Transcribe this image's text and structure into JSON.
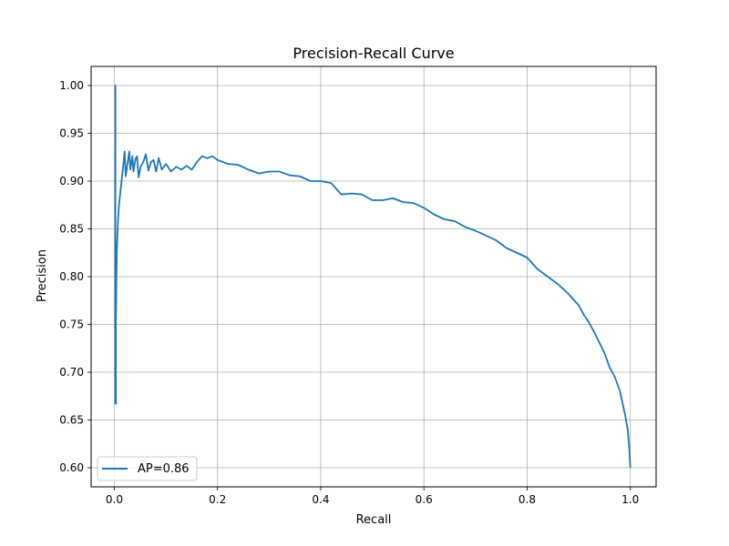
{
  "chart_data": {
    "type": "line",
    "title": "Precision-Recall Curve",
    "xlabel": "Recall",
    "ylabel": "Precision",
    "xlim": [
      -0.045,
      1.05
    ],
    "ylim": [
      0.58,
      1.02
    ],
    "xticks": [
      0.0,
      0.2,
      0.4,
      0.6,
      0.8,
      1.0
    ],
    "xtick_labels": [
      "0.0",
      "0.2",
      "0.4",
      "0.6",
      "0.8",
      "1.0"
    ],
    "yticks": [
      0.6,
      0.65,
      0.7,
      0.75,
      0.8,
      0.85,
      0.9,
      0.95,
      1.0
    ],
    "ytick_labels": [
      "0.60",
      "0.65",
      "0.70",
      "0.75",
      "0.80",
      "0.85",
      "0.90",
      "0.95",
      "1.00"
    ],
    "grid": true,
    "legend_position": "lower-left",
    "series": [
      {
        "name": "AP=0.86",
        "color": "#1f77b4",
        "points": [
          [
            0.001,
            1.0
          ],
          [
            0.002,
            1.0
          ],
          [
            0.002,
            0.667
          ],
          [
            0.003,
            0.667
          ],
          [
            0.003,
            0.75
          ],
          [
            0.004,
            0.8
          ],
          [
            0.005,
            0.83
          ],
          [
            0.007,
            0.857
          ],
          [
            0.009,
            0.875
          ],
          [
            0.012,
            0.89
          ],
          [
            0.014,
            0.9
          ],
          [
            0.016,
            0.91
          ],
          [
            0.018,
            0.92
          ],
          [
            0.02,
            0.931
          ],
          [
            0.022,
            0.905
          ],
          [
            0.026,
            0.92
          ],
          [
            0.029,
            0.931
          ],
          [
            0.031,
            0.912
          ],
          [
            0.035,
            0.926
          ],
          [
            0.037,
            0.91
          ],
          [
            0.041,
            0.923
          ],
          [
            0.044,
            0.926
          ],
          [
            0.047,
            0.904
          ],
          [
            0.051,
            0.915
          ],
          [
            0.056,
            0.92
          ],
          [
            0.061,
            0.928
          ],
          [
            0.066,
            0.911
          ],
          [
            0.071,
            0.92
          ],
          [
            0.076,
            0.922
          ],
          [
            0.081,
            0.91
          ],
          [
            0.086,
            0.924
          ],
          [
            0.092,
            0.912
          ],
          [
            0.1,
            0.918
          ],
          [
            0.11,
            0.91
          ],
          [
            0.12,
            0.915
          ],
          [
            0.13,
            0.912
          ],
          [
            0.14,
            0.916
          ],
          [
            0.15,
            0.912
          ],
          [
            0.16,
            0.92
          ],
          [
            0.17,
            0.926
          ],
          [
            0.18,
            0.924
          ],
          [
            0.19,
            0.926
          ],
          [
            0.2,
            0.922
          ],
          [
            0.21,
            0.92
          ],
          [
            0.22,
            0.918
          ],
          [
            0.24,
            0.917
          ],
          [
            0.26,
            0.912
          ],
          [
            0.28,
            0.908
          ],
          [
            0.3,
            0.91
          ],
          [
            0.32,
            0.91
          ],
          [
            0.34,
            0.906
          ],
          [
            0.36,
            0.905
          ],
          [
            0.38,
            0.9
          ],
          [
            0.4,
            0.9
          ],
          [
            0.42,
            0.898
          ],
          [
            0.44,
            0.886
          ],
          [
            0.46,
            0.887
          ],
          [
            0.48,
            0.886
          ],
          [
            0.5,
            0.88
          ],
          [
            0.52,
            0.88
          ],
          [
            0.54,
            0.882
          ],
          [
            0.56,
            0.878
          ],
          [
            0.58,
            0.877
          ],
          [
            0.6,
            0.872
          ],
          [
            0.62,
            0.865
          ],
          [
            0.64,
            0.86
          ],
          [
            0.66,
            0.858
          ],
          [
            0.68,
            0.852
          ],
          [
            0.7,
            0.848
          ],
          [
            0.72,
            0.843
          ],
          [
            0.74,
            0.838
          ],
          [
            0.76,
            0.83
          ],
          [
            0.78,
            0.825
          ],
          [
            0.8,
            0.82
          ],
          [
            0.82,
            0.808
          ],
          [
            0.84,
            0.8
          ],
          [
            0.86,
            0.792
          ],
          [
            0.88,
            0.782
          ],
          [
            0.9,
            0.77
          ],
          [
            0.91,
            0.76
          ],
          [
            0.92,
            0.752
          ],
          [
            0.93,
            0.742
          ],
          [
            0.94,
            0.731
          ],
          [
            0.95,
            0.72
          ],
          [
            0.96,
            0.705
          ],
          [
            0.97,
            0.695
          ],
          [
            0.98,
            0.68
          ],
          [
            0.99,
            0.655
          ],
          [
            0.995,
            0.64
          ],
          [
            0.998,
            0.62
          ],
          [
            1.0,
            0.6
          ]
        ]
      }
    ]
  }
}
